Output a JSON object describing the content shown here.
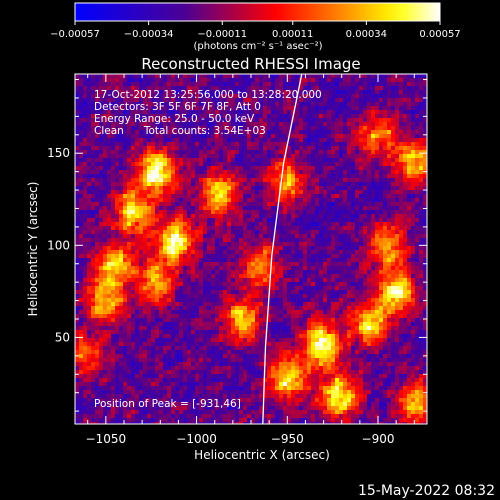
{
  "chart_data": {
    "type": "heatmap",
    "title": "Reconstructed RHESSI Image",
    "xlabel": "Heliocentric X (arcsec)",
    "ylabel": "Heliocentric Y (arcsec)",
    "xlim": [
      -1067,
      -873
    ],
    "ylim": [
      3,
      193
    ],
    "x_ticks": [
      -1050,
      -1000,
      -950,
      -900
    ],
    "x_tick_labels": [
      "−1050",
      "−1000",
      "−950",
      "−900"
    ],
    "y_ticks": [
      50,
      100,
      150
    ],
    "y_tick_labels": [
      "50",
      "100",
      "150"
    ],
    "grid": false,
    "colorbar": {
      "range": [
        -0.00057,
        0.00057
      ],
      "ticks": [
        -0.00057,
        -0.00034,
        -0.00011,
        0.00011,
        0.00034,
        0.00057
      ],
      "tick_labels": [
        "−0.00057",
        "−0.00034",
        "−0.00011",
        "0.00011",
        "0.00034",
        "0.00057"
      ],
      "unit": "(photons cm⁻² s⁻¹ asec⁻²)",
      "colors": [
        "#0000ff",
        "#4b0094",
        "#ff0000",
        "#ff8000",
        "#ffff00",
        "#ffffff"
      ]
    },
    "annotations": {
      "time_range": "17-Oct-2012 13:25:56.000 to 13:28:20.000",
      "detectors": "Detectors: 3F 5F 6F 7F 8F, Att 0",
      "energy_range": "Energy Range: 25.0 - 50.0 keV",
      "clean_counts": "Clean      Total counts: 3.54E+03",
      "peak_position": "Position of Peak = [-931,46]"
    },
    "limb_curve": [
      {
        "x": -963.5,
        "y": 3
      },
      {
        "x": -962.0,
        "y": 45
      },
      {
        "x": -958.5,
        "y": 95
      },
      {
        "x": -952.0,
        "y": 145
      },
      {
        "x": -942.0,
        "y": 193
      }
    ],
    "value_peaks": [
      {
        "x": -1022,
        "y": 140,
        "value": 0.00057
      },
      {
        "x": -1035,
        "y": 118,
        "value": 0.00045
      },
      {
        "x": -1012,
        "y": 102,
        "value": 0.00052
      },
      {
        "x": -1045,
        "y": 90,
        "value": 0.0004
      },
      {
        "x": -1050,
        "y": 70,
        "value": 0.00035
      },
      {
        "x": -1022,
        "y": 80,
        "value": 0.0003
      },
      {
        "x": -987,
        "y": 128,
        "value": 0.0004
      },
      {
        "x": -975,
        "y": 60,
        "value": 0.00036
      },
      {
        "x": -931,
        "y": 46,
        "value": 0.00057
      },
      {
        "x": -921,
        "y": 18,
        "value": 0.00052
      },
      {
        "x": -950,
        "y": 28,
        "value": 0.00045
      },
      {
        "x": -905,
        "y": 58,
        "value": 0.00042
      },
      {
        "x": -890,
        "y": 75,
        "value": 0.00047
      },
      {
        "x": -895,
        "y": 100,
        "value": 0.00032
      },
      {
        "x": -880,
        "y": 145,
        "value": 0.0004
      },
      {
        "x": -900,
        "y": 160,
        "value": 0.00025
      },
      {
        "x": -878,
        "y": 15,
        "value": 0.00036
      },
      {
        "x": -1060,
        "y": 40,
        "value": 0.0002
      },
      {
        "x": -950,
        "y": 135,
        "value": 0.0003
      },
      {
        "x": -965,
        "y": 88,
        "value": 0.00028
      }
    ]
  },
  "footer": {
    "timestamp": "15-May-2022 08:32"
  }
}
